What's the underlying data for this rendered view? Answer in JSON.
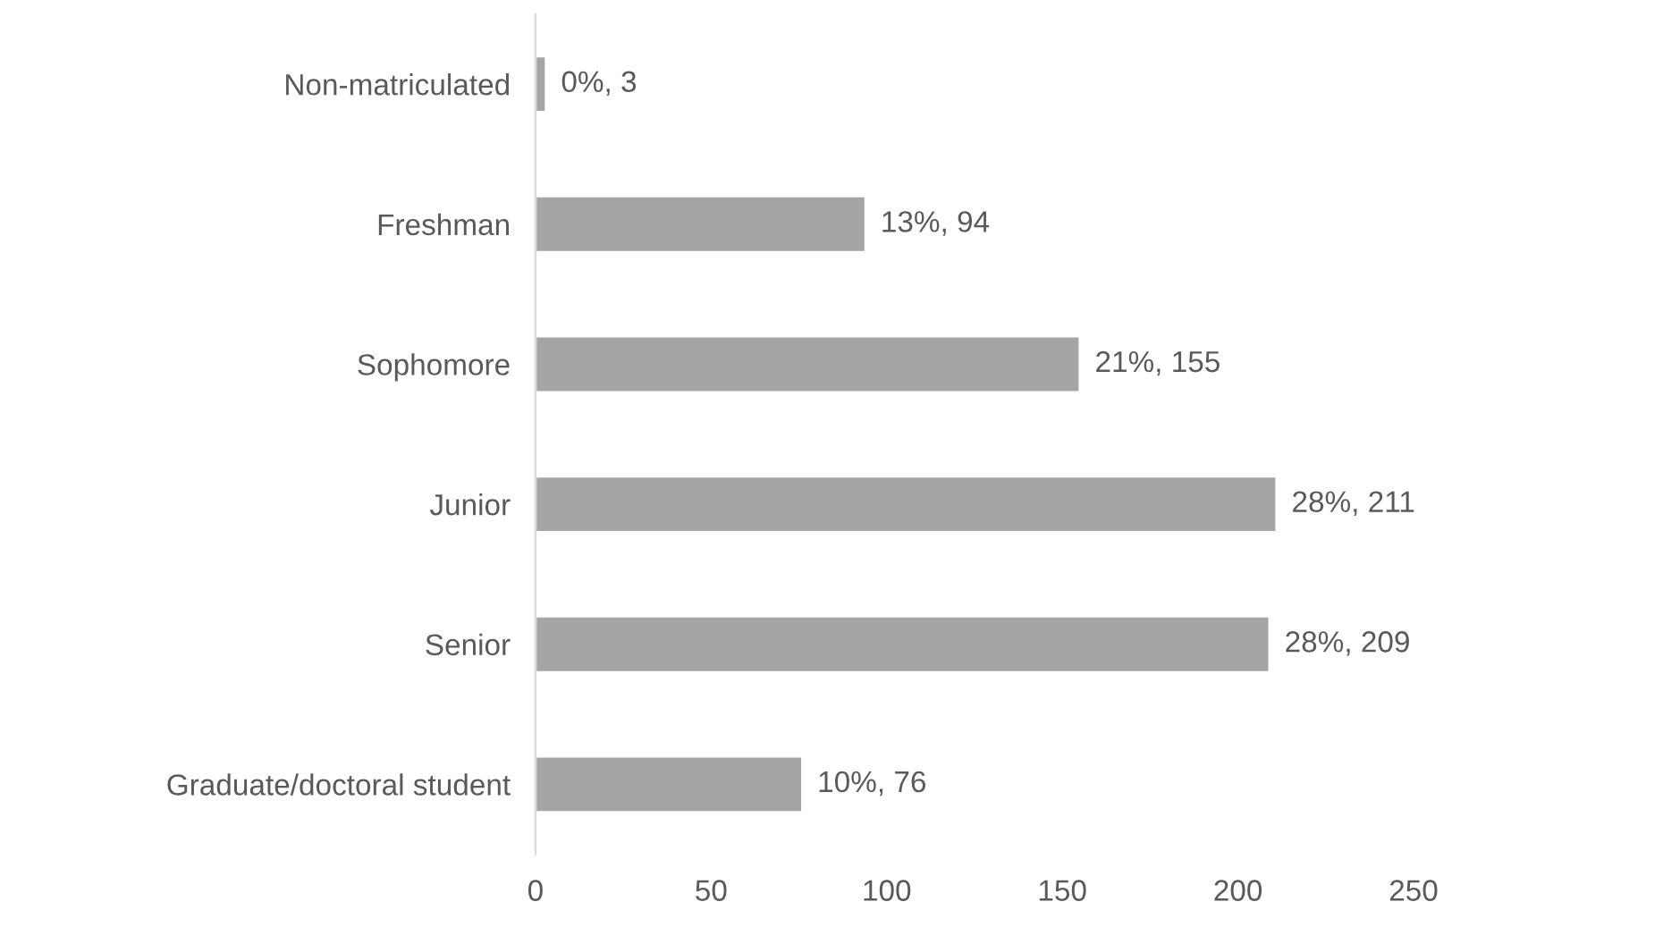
{
  "chart_data": {
    "type": "bar",
    "orientation": "horizontal",
    "categories": [
      "Non-matriculated",
      "Freshman",
      "Sophomore",
      "Junior",
      "Senior",
      "Graduate/doctoral student"
    ],
    "values": [
      3,
      94,
      155,
      211,
      209,
      76
    ],
    "value_labels": [
      "0%, 3",
      "13%, 94",
      "21%, 155",
      "28%, 211",
      "28%, 209",
      "10%, 76"
    ],
    "color": "#a5a5a5",
    "xlim": [
      0,
      250
    ],
    "xticks": [
      0,
      50,
      100,
      150,
      200,
      250
    ],
    "grid": false,
    "legend": false
  }
}
